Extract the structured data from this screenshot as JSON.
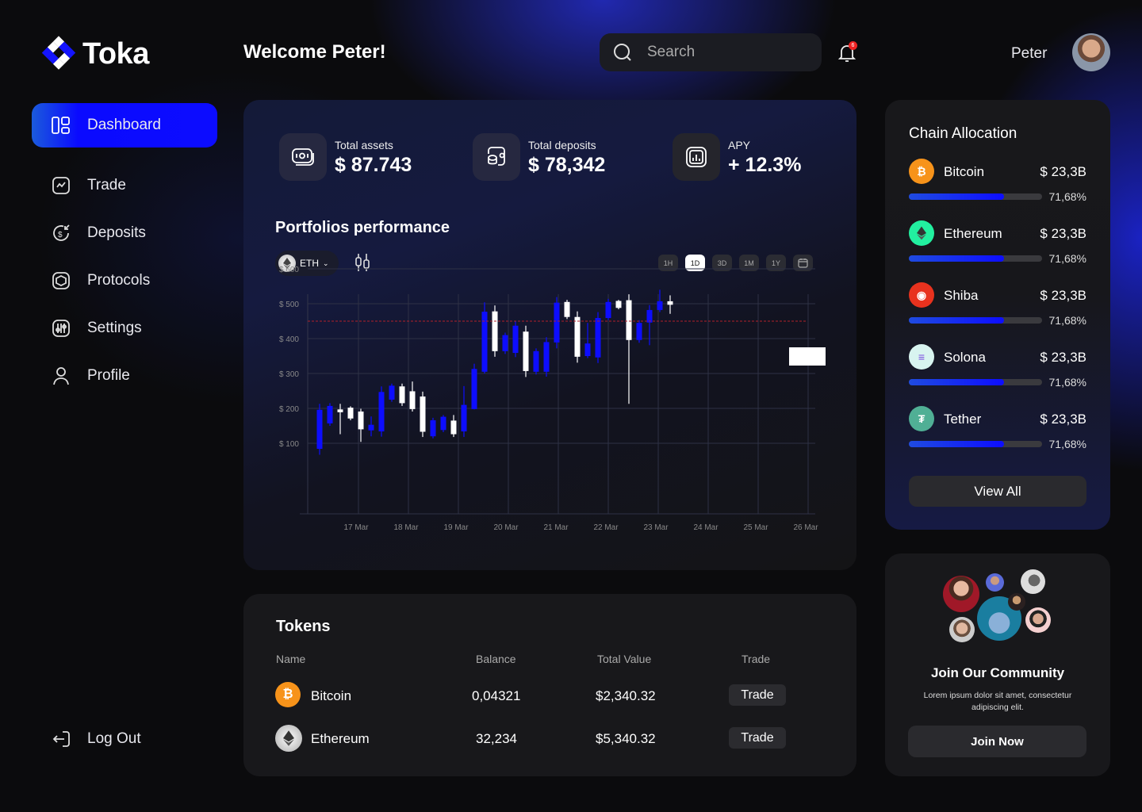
{
  "brand": {
    "name": "Toka"
  },
  "header": {
    "welcome": "Welcome Peter!",
    "search_placeholder": "Search",
    "notification_count": "6",
    "username": "Peter"
  },
  "sidebar": {
    "items": [
      {
        "label": "Dashboard",
        "icon": "dashboard-icon",
        "active": true
      },
      {
        "label": "Trade",
        "icon": "trade-icon"
      },
      {
        "label": "Deposits",
        "icon": "deposits-icon"
      },
      {
        "label": "Protocols",
        "icon": "protocols-icon"
      },
      {
        "label": "Settings",
        "icon": "settings-icon"
      },
      {
        "label": "Profile",
        "icon": "profile-icon"
      }
    ],
    "logout": "Log Out"
  },
  "stats": [
    {
      "label": "Total assets",
      "value": "$ 87.743"
    },
    {
      "label": "Total deposits",
      "value": "$ 78,342"
    },
    {
      "label": "APY",
      "value": "+ 12.3%"
    }
  ],
  "performance": {
    "title": "Portfolios performance",
    "asset": "ETH",
    "timeframes": [
      "1H",
      "1D",
      "3D",
      "1M",
      "1Y"
    ],
    "active_timeframe": "1D"
  },
  "chart_data": {
    "type": "candlestick",
    "y_ticks": [
      "$ 600",
      "$ 500",
      "$ 400",
      "$ 300",
      "$ 200",
      "$ 100"
    ],
    "y_tick_values": [
      600,
      500,
      400,
      300,
      200,
      100
    ],
    "x_ticks": [
      "17 Mar",
      "18 Mar",
      "19 Mar",
      "20 Mar",
      "21 Mar",
      "22 Mar",
      "23 Mar",
      "24 Mar",
      "25 Mar",
      "26 Mar"
    ],
    "ylim": [
      0,
      625
    ],
    "current_price_line": 450,
    "up_color": "#0d0dff",
    "down_color": "#ffffff",
    "candles": [
      {
        "o": 84,
        "h": 213,
        "l": 67,
        "c": 196
      },
      {
        "o": 157,
        "h": 215,
        "l": 150,
        "c": 207
      },
      {
        "o": 197,
        "h": 213,
        "l": 126,
        "c": 189
      },
      {
        "o": 202,
        "h": 206,
        "l": 166,
        "c": 171
      },
      {
        "o": 191,
        "h": 199,
        "l": 104,
        "c": 140
      },
      {
        "o": 137,
        "h": 177,
        "l": 120,
        "c": 153
      },
      {
        "o": 134,
        "h": 263,
        "l": 119,
        "c": 247
      },
      {
        "o": 225,
        "h": 271,
        "l": 219,
        "c": 265
      },
      {
        "o": 263,
        "h": 271,
        "l": 207,
        "c": 215
      },
      {
        "o": 249,
        "h": 277,
        "l": 191,
        "c": 198
      },
      {
        "o": 234,
        "h": 248,
        "l": 118,
        "c": 133
      },
      {
        "o": 120,
        "h": 173,
        "l": 114,
        "c": 166
      },
      {
        "o": 138,
        "h": 181,
        "l": 132,
        "c": 176
      },
      {
        "o": 165,
        "h": 181,
        "l": 118,
        "c": 126
      },
      {
        "o": 134,
        "h": 264,
        "l": 118,
        "c": 210
      },
      {
        "o": 198,
        "h": 328,
        "l": 197,
        "c": 313
      },
      {
        "o": 305,
        "h": 504,
        "l": 300,
        "c": 477
      },
      {
        "o": 478,
        "h": 495,
        "l": 348,
        "c": 364
      },
      {
        "o": 364,
        "h": 417,
        "l": 356,
        "c": 410
      },
      {
        "o": 359,
        "h": 451,
        "l": 347,
        "c": 437
      },
      {
        "o": 420,
        "h": 437,
        "l": 290,
        "c": 307
      },
      {
        "o": 305,
        "h": 372,
        "l": 297,
        "c": 364
      },
      {
        "o": 305,
        "h": 404,
        "l": 291,
        "c": 390
      },
      {
        "o": 389,
        "h": 519,
        "l": 372,
        "c": 503
      },
      {
        "o": 505,
        "h": 511,
        "l": 456,
        "c": 462
      },
      {
        "o": 462,
        "h": 478,
        "l": 331,
        "c": 348
      },
      {
        "o": 350,
        "h": 445,
        "l": 344,
        "c": 386
      },
      {
        "o": 346,
        "h": 476,
        "l": 330,
        "c": 459
      },
      {
        "o": 459,
        "h": 514,
        "l": 453,
        "c": 505
      },
      {
        "o": 508,
        "h": 511,
        "l": 484,
        "c": 488
      },
      {
        "o": 510,
        "h": 527,
        "l": 213,
        "c": 396
      },
      {
        "o": 396,
        "h": 453,
        "l": 388,
        "c": 445
      },
      {
        "o": 446,
        "h": 496,
        "l": 381,
        "c": 482
      },
      {
        "o": 482,
        "h": 540,
        "l": 476,
        "c": 507
      },
      {
        "o": 507,
        "h": 524,
        "l": 471,
        "c": 497
      }
    ]
  },
  "tokens": {
    "title": "Tokens",
    "columns": [
      "Name",
      "Balance",
      "Total Value",
      "Trade"
    ],
    "rows": [
      {
        "name": "Bitcoin",
        "balance": "0,04321",
        "total": "$2,340.32",
        "action": "Trade"
      },
      {
        "name": "Ethereum",
        "balance": "32,234",
        "total": "$5,340.32",
        "action": "Trade"
      }
    ]
  },
  "chain": {
    "title": "Chain Allocation",
    "view_all": "View All",
    "items": [
      {
        "name": "Bitcoin",
        "value": "$ 23,3B",
        "pct": "71,68%",
        "fill": 0.7168,
        "color": "#f7931a"
      },
      {
        "name": "Ethereum",
        "value": "$ 23,3B",
        "pct": "71,68%",
        "fill": 0.7168,
        "color": "#22f0a0"
      },
      {
        "name": "Shiba",
        "value": "$ 23,3B",
        "pct": "71,68%",
        "fill": 0.7168,
        "color": "#e8321e"
      },
      {
        "name": "Solona",
        "value": "$ 23,3B",
        "pct": "71,68%",
        "fill": 0.7168,
        "color": "#d8f4f0"
      },
      {
        "name": "Tether",
        "value": "$ 23,3B",
        "pct": "71,68%",
        "fill": 0.7168,
        "color": "#50af95"
      }
    ]
  },
  "community": {
    "title": "Join Our Community",
    "desc": "Lorem ipsum dolor sit amet, consectetur adipiscing elit.",
    "button": "Join Now"
  }
}
